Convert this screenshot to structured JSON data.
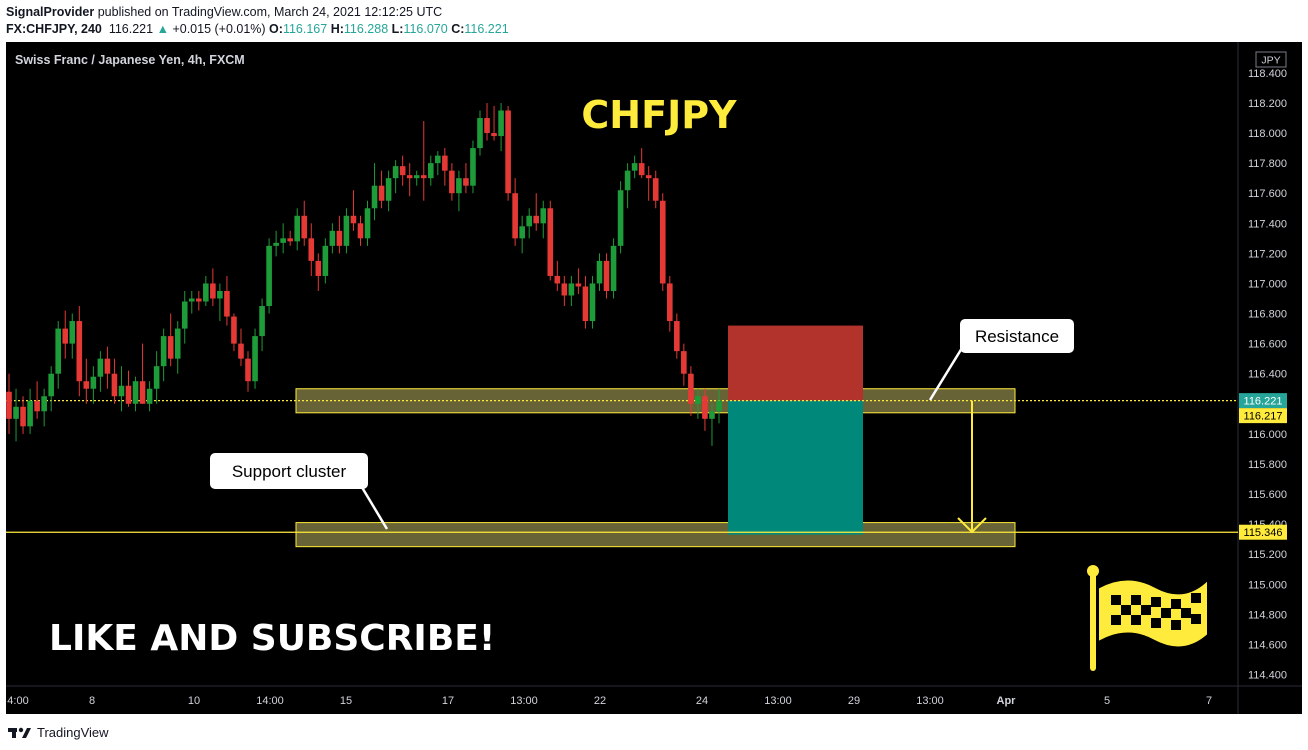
{
  "header": {
    "publisher": "SignalProvider",
    "published_text": "published on TradingView.com, March 24, 2021 12:12:25 UTC",
    "symbol": "FX:CHFJPY, 240",
    "last": "116.221",
    "change": "+0.015 (+0.01%)",
    "o_label": "O:",
    "o": "116.167",
    "h_label": "H:",
    "h": "116.288",
    "l_label": "L:",
    "l": "116.070",
    "c_label": "C:",
    "c": "116.221"
  },
  "footer": {
    "brand": "TradingView"
  },
  "colors": {
    "background": "#000000",
    "up": "#26a69a",
    "up_body": "#1e9c3a",
    "down": "#e53935",
    "accent": "#ffeb3b",
    "zone": "#7a7440",
    "stop_zone": "#b2322c",
    "target_zone": "#00897b"
  },
  "chart_data": {
    "type": "candlestick",
    "instrument": "Swiss Franc / Japanese Yen, 4h, FXCM",
    "currency": "JPY",
    "title_overlay": "CHFJPY",
    "call_to_action": "LIKE AND SUBSCRIBE!",
    "ylim": [
      114.3,
      118.5
    ],
    "y_ticks": [
      "118.400",
      "118.200",
      "118.000",
      "117.800",
      "117.600",
      "117.400",
      "117.200",
      "117.000",
      "116.800",
      "116.600",
      "116.400",
      "116.200",
      "116.000",
      "115.800",
      "115.600",
      "115.400",
      "115.200",
      "115.000",
      "114.800",
      "114.600",
      "114.400"
    ],
    "x_tick_labels": [
      "4:00",
      "8",
      "10",
      "14:00",
      "15",
      "17",
      "13:00",
      "22",
      "24",
      "13:00",
      "29",
      "13:00",
      "Apr",
      "5",
      "7"
    ],
    "price_labels": [
      {
        "value": 116.221,
        "text": "116.221",
        "style": "current"
      },
      {
        "value": 116.217,
        "text": "116.217",
        "style": "level"
      },
      {
        "value": 115.346,
        "text": "115.346",
        "style": "level"
      }
    ],
    "horizontal_lines": [
      {
        "value": 116.221,
        "style": "dotted"
      },
      {
        "value": 115.346,
        "style": "solid"
      }
    ],
    "zones": [
      {
        "name": "resistance-zone",
        "from": 116.14,
        "to": 116.3
      },
      {
        "name": "support-zone",
        "from": 115.25,
        "to": 115.41
      }
    ],
    "short_position": {
      "stop": 116.72,
      "entry": 116.22,
      "target": 115.33
    },
    "annotations": [
      "Resistance",
      "Support cluster"
    ],
    "candles": [
      [
        116.28,
        116.4,
        116.0,
        116.1
      ],
      [
        116.1,
        116.3,
        115.95,
        116.18
      ],
      [
        116.18,
        116.25,
        116.0,
        116.05
      ],
      [
        116.05,
        116.3,
        116.0,
        116.22
      ],
      [
        116.22,
        116.35,
        116.1,
        116.15
      ],
      [
        116.15,
        116.3,
        116.05,
        116.25
      ],
      [
        116.25,
        116.45,
        116.15,
        116.4
      ],
      [
        116.4,
        116.75,
        116.3,
        116.7
      ],
      [
        116.7,
        116.82,
        116.5,
        116.6
      ],
      [
        116.6,
        116.8,
        116.5,
        116.75
      ],
      [
        116.75,
        116.85,
        116.25,
        116.35
      ],
      [
        116.35,
        116.5,
        116.2,
        116.3
      ],
      [
        116.3,
        116.45,
        116.2,
        116.38
      ],
      [
        116.38,
        116.55,
        116.28,
        116.5
      ],
      [
        116.5,
        116.58,
        116.3,
        116.4
      ],
      [
        116.4,
        116.5,
        116.2,
        116.25
      ],
      [
        116.25,
        116.45,
        116.15,
        116.32
      ],
      [
        116.32,
        116.42,
        116.18,
        116.2
      ],
      [
        116.2,
        116.38,
        116.15,
        116.35
      ],
      [
        116.35,
        116.6,
        116.2,
        116.2
      ],
      [
        116.2,
        116.35,
        116.15,
        116.3
      ],
      [
        116.3,
        116.55,
        116.2,
        116.45
      ],
      [
        116.45,
        116.7,
        116.35,
        116.65
      ],
      [
        116.65,
        116.8,
        116.45,
        116.5
      ],
      [
        116.5,
        116.75,
        116.4,
        116.7
      ],
      [
        116.7,
        116.95,
        116.6,
        116.88
      ],
      [
        116.88,
        116.95,
        116.8,
        116.9
      ],
      [
        116.9,
        116.95,
        116.82,
        116.88
      ],
      [
        116.88,
        117.05,
        116.85,
        117.0
      ],
      [
        117.0,
        117.1,
        116.85,
        116.9
      ],
      [
        116.9,
        117.0,
        116.75,
        116.95
      ],
      [
        116.95,
        117.05,
        116.72,
        116.78
      ],
      [
        116.78,
        116.8,
        116.55,
        116.6
      ],
      [
        116.6,
        116.7,
        116.45,
        116.5
      ],
      [
        116.5,
        116.55,
        116.28,
        116.35
      ],
      [
        116.35,
        116.7,
        116.3,
        116.65
      ],
      [
        116.65,
        116.9,
        116.55,
        116.85
      ],
      [
        116.85,
        117.3,
        116.8,
        117.25
      ],
      [
        117.25,
        117.35,
        117.18,
        117.27
      ],
      [
        117.27,
        117.4,
        117.2,
        117.3
      ],
      [
        117.3,
        117.35,
        117.25,
        117.28
      ],
      [
        117.28,
        117.5,
        117.22,
        117.45
      ],
      [
        117.45,
        117.55,
        117.25,
        117.3
      ],
      [
        117.3,
        117.4,
        117.05,
        117.15
      ],
      [
        117.15,
        117.2,
        116.95,
        117.05
      ],
      [
        117.05,
        117.3,
        117.0,
        117.25
      ],
      [
        117.25,
        117.4,
        117.2,
        117.35
      ],
      [
        117.35,
        117.45,
        117.2,
        117.25
      ],
      [
        117.25,
        117.5,
        117.2,
        117.45
      ],
      [
        117.45,
        117.62,
        117.35,
        117.4
      ],
      [
        117.4,
        117.45,
        117.25,
        117.3
      ],
      [
        117.3,
        117.55,
        117.25,
        117.5
      ],
      [
        117.5,
        117.8,
        117.42,
        117.65
      ],
      [
        117.65,
        117.75,
        117.5,
        117.55
      ],
      [
        117.55,
        117.75,
        117.48,
        117.7
      ],
      [
        117.7,
        117.82,
        117.6,
        117.78
      ],
      [
        117.78,
        117.85,
        117.65,
        117.72
      ],
      [
        117.72,
        117.8,
        117.58,
        117.7
      ],
      [
        117.7,
        117.75,
        117.65,
        117.72
      ],
      [
        117.72,
        118.08,
        117.55,
        117.7
      ],
      [
        117.7,
        117.85,
        117.65,
        117.8
      ],
      [
        117.8,
        117.88,
        117.72,
        117.85
      ],
      [
        117.85,
        117.9,
        117.65,
        117.75
      ],
      [
        117.75,
        117.8,
        117.55,
        117.6
      ],
      [
        117.6,
        117.75,
        117.48,
        117.7
      ],
      [
        117.7,
        117.8,
        117.6,
        117.65
      ],
      [
        117.65,
        117.95,
        117.6,
        117.9
      ],
      [
        117.9,
        118.15,
        117.85,
        118.1
      ],
      [
        118.1,
        118.2,
        117.95,
        118.0
      ],
      [
        118.0,
        118.18,
        117.95,
        117.98
      ],
      [
        117.98,
        118.2,
        117.88,
        118.15
      ],
      [
        118.15,
        118.18,
        117.55,
        117.6
      ],
      [
        117.6,
        117.7,
        117.25,
        117.3
      ],
      [
        117.3,
        117.45,
        117.2,
        117.38
      ],
      [
        117.38,
        117.5,
        117.3,
        117.45
      ],
      [
        117.45,
        117.6,
        117.35,
        117.4
      ],
      [
        117.4,
        117.55,
        117.3,
        117.5
      ],
      [
        117.5,
        117.55,
        117.02,
        117.05
      ],
      [
        117.05,
        117.15,
        116.95,
        117.0
      ],
      [
        117.0,
        117.05,
        116.85,
        116.92
      ],
      [
        116.92,
        117.05,
        116.85,
        117.0
      ],
      [
        117.0,
        117.1,
        116.93,
        116.98
      ],
      [
        116.98,
        117.05,
        116.7,
        116.75
      ],
      [
        116.75,
        117.05,
        116.7,
        117.0
      ],
      [
        117.0,
        117.2,
        116.95,
        117.15
      ],
      [
        117.15,
        117.2,
        116.9,
        116.95
      ],
      [
        116.95,
        117.3,
        116.9,
        117.25
      ],
      [
        117.25,
        117.68,
        117.2,
        117.62
      ],
      [
        117.62,
        117.8,
        117.5,
        117.75
      ],
      [
        117.75,
        117.85,
        117.7,
        117.8
      ],
      [
        117.8,
        117.9,
        117.7,
        117.72
      ],
      [
        117.72,
        117.78,
        117.55,
        117.7
      ],
      [
        117.7,
        117.75,
        117.5,
        117.55
      ],
      [
        117.55,
        117.6,
        116.95,
        117.0
      ],
      [
        117.0,
        117.05,
        116.68,
        116.75
      ],
      [
        116.75,
        116.8,
        116.5,
        116.55
      ],
      [
        116.55,
        116.6,
        116.32,
        116.4
      ],
      [
        116.4,
        116.45,
        116.12,
        116.2
      ],
      [
        116.2,
        116.3,
        116.1,
        116.25
      ],
      [
        116.25,
        116.3,
        116.02,
        116.1
      ],
      [
        116.1,
        116.2,
        115.92,
        116.15
      ],
      [
        116.15,
        116.3,
        116.07,
        116.22
      ]
    ]
  }
}
